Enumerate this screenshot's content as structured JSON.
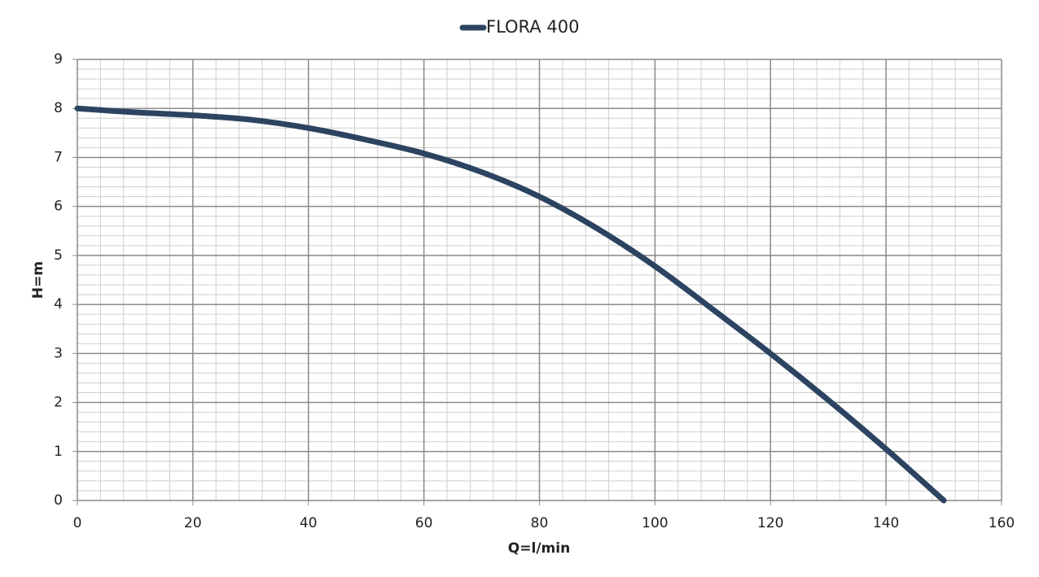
{
  "chart_data": {
    "type": "line",
    "x_label": "Q=l/min",
    "y_label": "H=m",
    "x": [
      0,
      10,
      20,
      30,
      40,
      50,
      60,
      70,
      80,
      90,
      100,
      110,
      120,
      130,
      140,
      150
    ],
    "series": [
      {
        "name": "FLORA 400",
        "color": "#2c4461",
        "values": [
          8.0,
          7.92,
          7.86,
          7.77,
          7.6,
          7.36,
          7.08,
          6.7,
          6.2,
          5.55,
          4.78,
          3.9,
          3.0,
          2.05,
          1.05,
          0
        ]
      }
    ],
    "xlim": [
      0,
      160
    ],
    "xticks": [
      0,
      20,
      40,
      60,
      80,
      100,
      120,
      140,
      160
    ],
    "ylim": [
      0,
      9
    ],
    "yticks": [
      0,
      1,
      2,
      3,
      4,
      5,
      6,
      7,
      8,
      9
    ],
    "grid": true,
    "x_minor_step": 4,
    "y_minor_step": 0.2,
    "legend": "top"
  }
}
